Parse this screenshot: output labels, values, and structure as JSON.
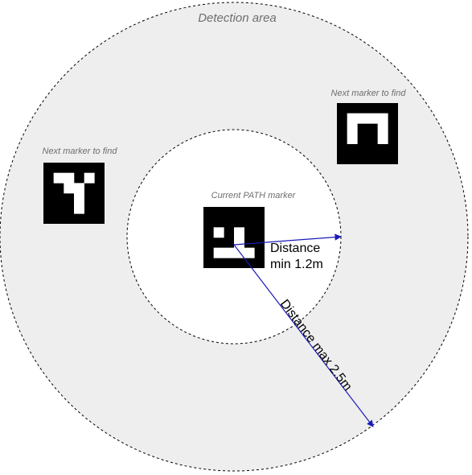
{
  "labels": {
    "detection_area": "Detection area",
    "current_marker": "Current PATH marker",
    "next_marker_left": "Next marker to find",
    "next_marker_right": "Next marker to find",
    "distance_min_line1": "Distance",
    "distance_min_line2": "min 1.2m",
    "distance_max": "Distance max 2.5m"
  },
  "colors": {
    "ring_fill": "#eeeeee",
    "inner_fill": "#ffffff",
    "arrow": "#1a1ab8",
    "marker_black": "#000000",
    "marker_white": "#ffffff",
    "label_gray": "#6e6e6e"
  },
  "markers": {
    "current": {
      "grid": [
        [
          0,
          0,
          0,
          0
        ],
        [
          1,
          0,
          1,
          0
        ],
        [
          0,
          0,
          1,
          0
        ],
        [
          1,
          1,
          1,
          1
        ]
      ]
    },
    "next_left": {
      "grid": [
        [
          1,
          1,
          0,
          1
        ],
        [
          0,
          1,
          1,
          0
        ],
        [
          0,
          0,
          1,
          0
        ],
        [
          0,
          0,
          1,
          0
        ]
      ]
    },
    "next_right": {
      "grid": [
        [
          1,
          1,
          1,
          1
        ],
        [
          1,
          0,
          0,
          1
        ],
        [
          1,
          0,
          0,
          1
        ],
        [
          0,
          0,
          0,
          0
        ]
      ]
    }
  }
}
